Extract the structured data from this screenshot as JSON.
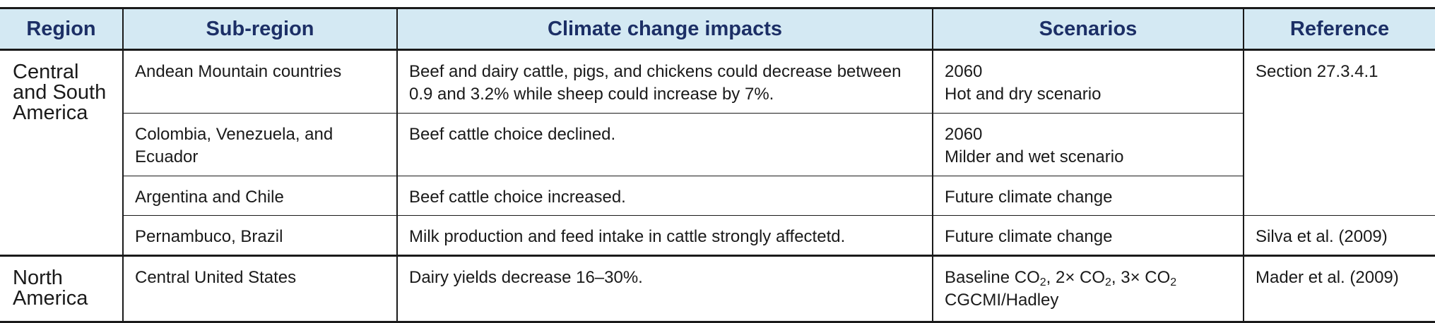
{
  "headers": [
    "Region",
    "Sub-region",
    "Climate change impacts",
    "Scenarios",
    "Reference"
  ],
  "groups": [
    {
      "region": [
        "Central",
        "and South",
        "America"
      ],
      "rows": [
        {
          "subregion": "Andean Mountain countries",
          "impacts": [
            "Beef and dairy cattle, pigs, and chickens could decrease between",
            "0.9 and 3.2% while sheep could increase by 7%."
          ],
          "scenarios": [
            "2060",
            "Hot and dry scenario"
          ],
          "reference": "Section 27.3.4.1"
        },
        {
          "subregion": [
            "Colombia, Venezuela, and",
            "Ecuador"
          ],
          "impacts": "Beef cattle choice declined.",
          "scenarios": [
            "2060",
            "Milder and wet scenario"
          ]
        },
        {
          "subregion": "Argentina and Chile",
          "impacts": "Beef cattle choice increased.",
          "scenarios": "Future climate change"
        },
        {
          "subregion": "Pernambuco, Brazil",
          "impacts": "Milk production and feed intake in cattle strongly affectetd.",
          "scenarios": "Future climate change",
          "reference": "Silva et al. (2009)"
        }
      ]
    },
    {
      "region": [
        "North",
        "America"
      ],
      "rows": [
        {
          "subregion": "Central United States",
          "impacts": "Dairy yields decrease 16–30%.",
          "scenarios": {
            "baseline": "Baseline CO",
            "co2_sub": "2",
            "double": ", 2× CO",
            "triple": ", 3× CO",
            "line2": "CGCMI/Hadley"
          },
          "reference": "Mader et al. (2009)"
        }
      ]
    }
  ]
}
